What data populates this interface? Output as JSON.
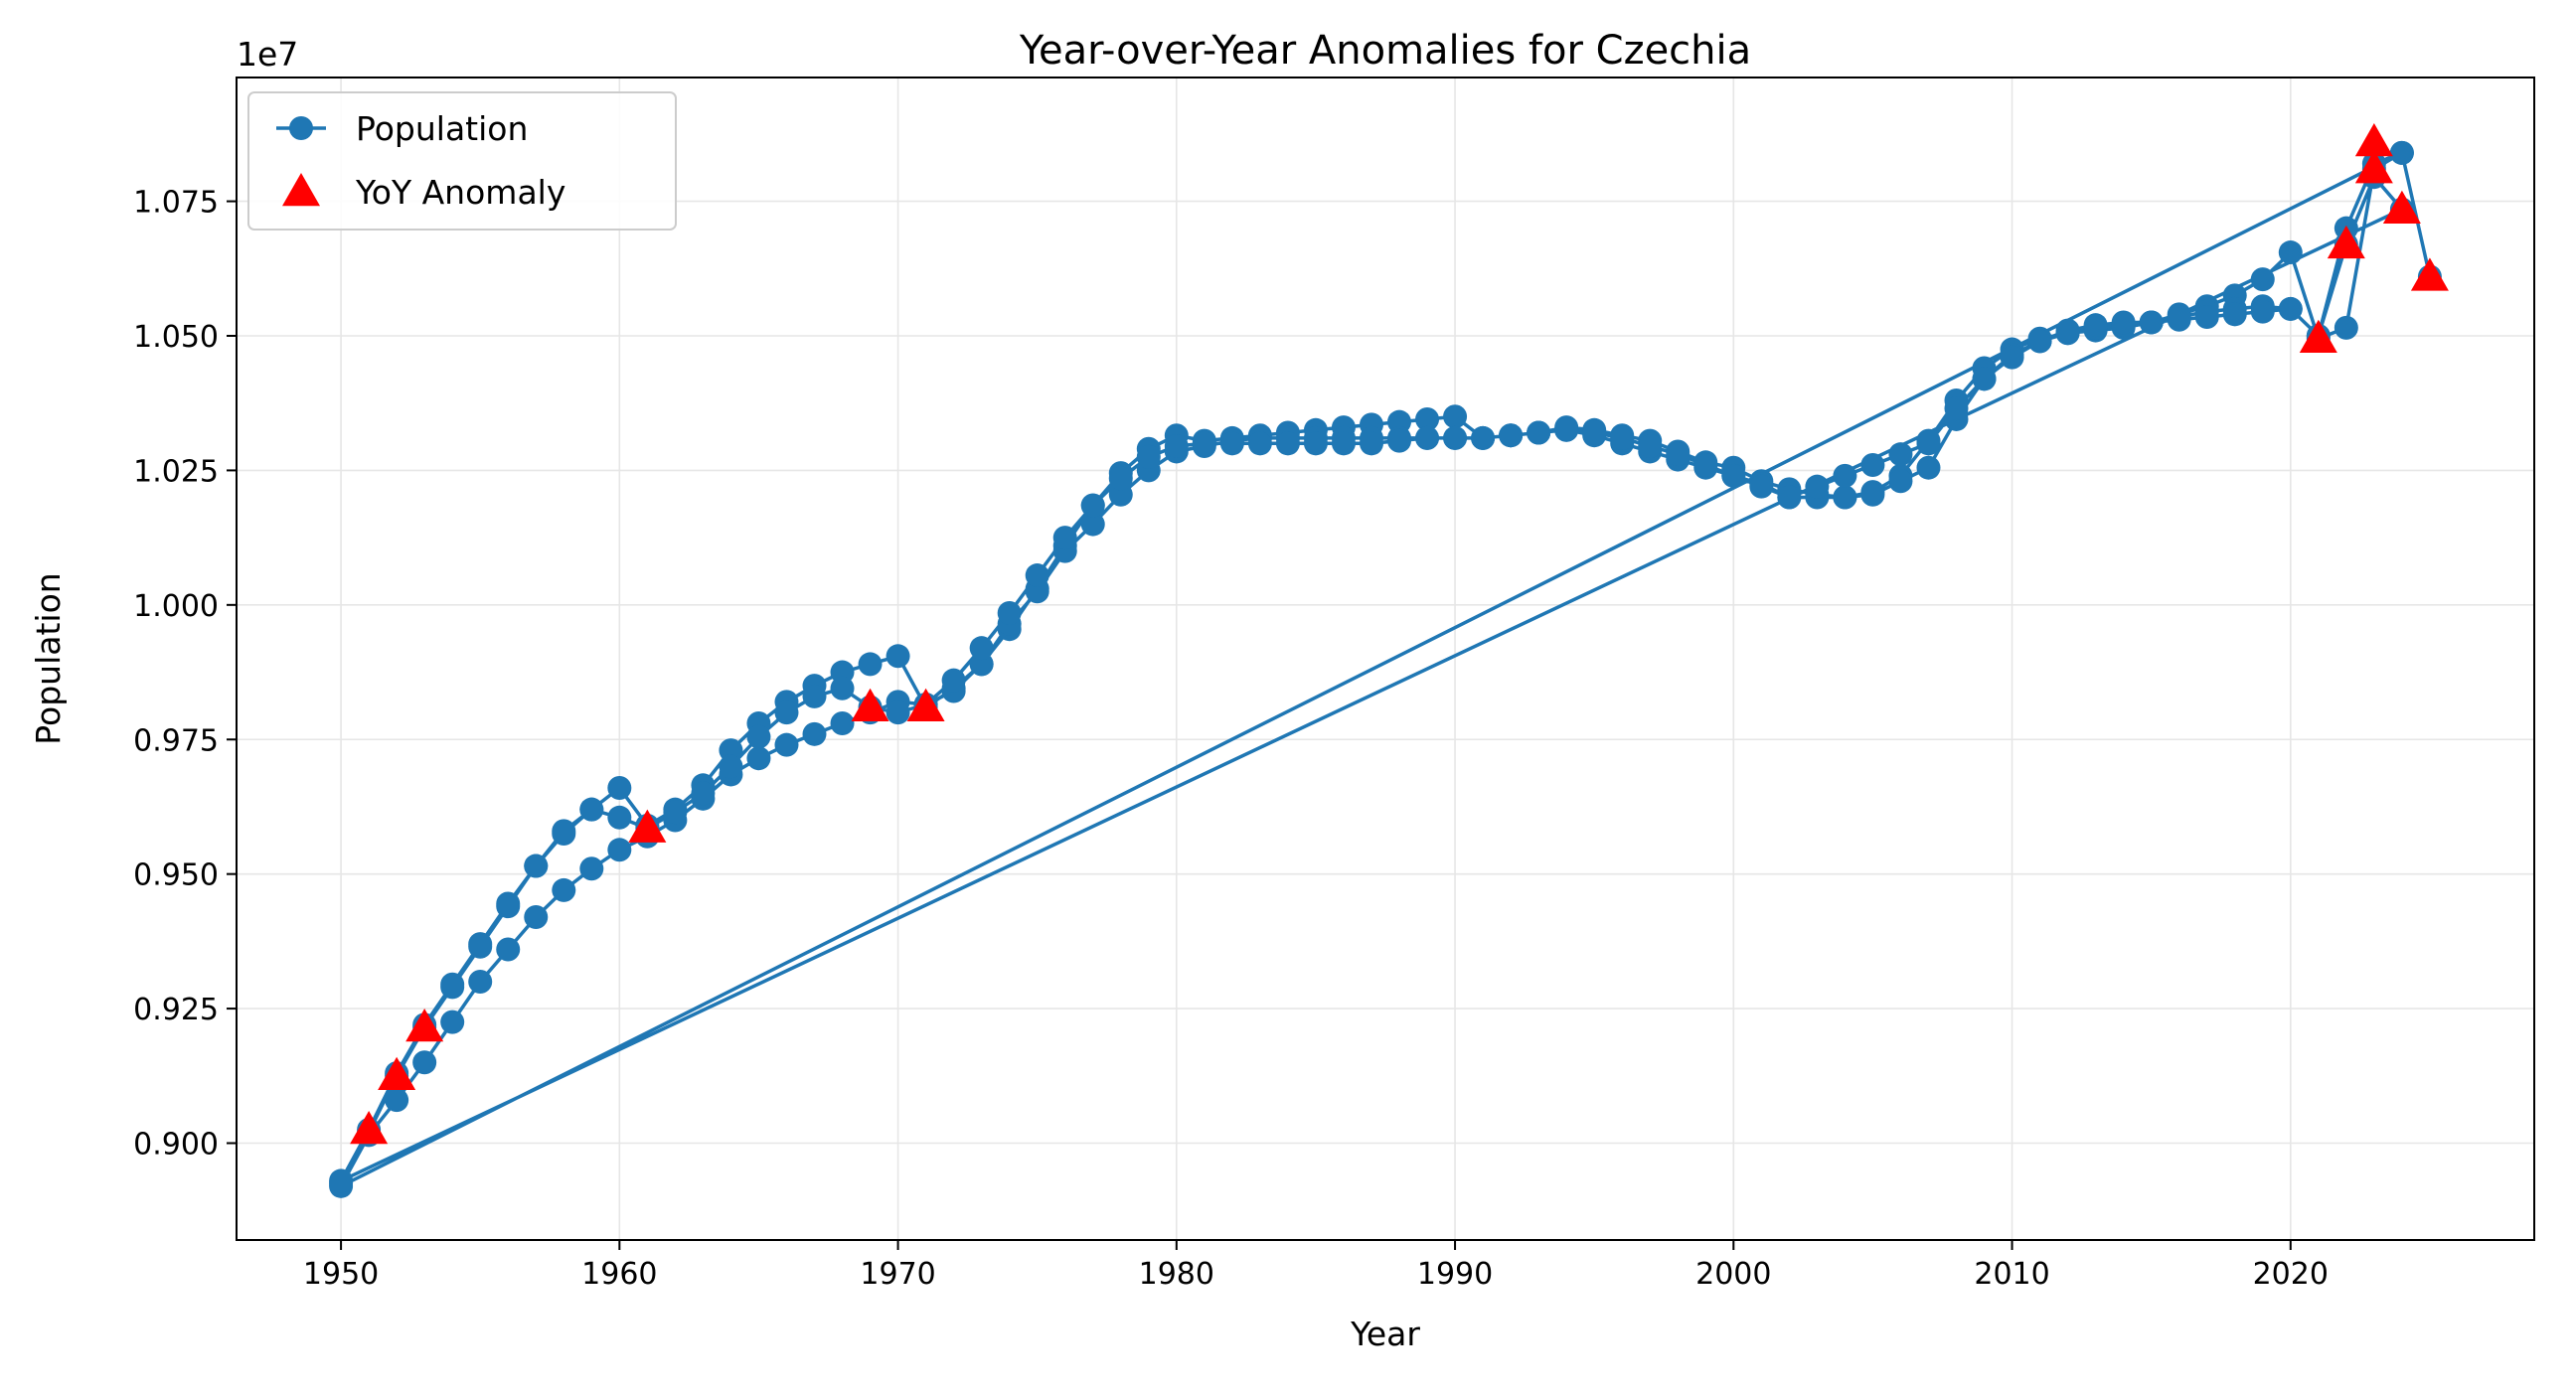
{
  "chart_data": {
    "type": "line",
    "title": "Year-over-Year Anomalies for Czechia",
    "xlabel": "Year",
    "ylabel": "Population",
    "y_offset_text": "1e7",
    "xlim": [
      1946.25,
      2028.75
    ],
    "ylim": [
      8820000.0,
      10980000.0
    ],
    "x_ticks": [
      1950,
      1960,
      1970,
      1980,
      1990,
      2000,
      2010,
      2020
    ],
    "x_tick_labels": [
      "1950",
      "1960",
      "1970",
      "1980",
      "1990",
      "2000",
      "2010",
      "2020"
    ],
    "y_ticks": [
      9000000,
      9250000,
      9500000,
      9750000,
      10000000,
      10250000,
      10500000,
      10750000
    ],
    "y_tick_labels": [
      "0.900",
      "0.925",
      "0.950",
      "0.975",
      "1.000",
      "1.025",
      "1.050",
      "1.075"
    ],
    "grid": true,
    "legend_position": "top-left",
    "colors": {
      "series": "#1f77b4",
      "anomaly": "#ff0000"
    },
    "series": [
      {
        "name": "Population",
        "x": [
          1950,
          1951,
          1952,
          1953,
          1954,
          1955,
          1956,
          1957,
          1958,
          1959,
          1960,
          1961,
          1962,
          1963,
          1964,
          1965,
          1966,
          1967,
          1968,
          1969,
          1970,
          1971,
          1972,
          1973,
          1974,
          1975,
          1976,
          1977,
          1978,
          1979,
          1980,
          1981,
          1982,
          1983,
          1984,
          1985,
          1986,
          1987,
          1988,
          1989,
          1990,
          1991,
          1992,
          1993,
          1994,
          1995,
          1996,
          1997,
          1998,
          1999,
          2000,
          2001,
          2002,
          2003,
          2004,
          2005,
          2006,
          2007,
          2008,
          2009,
          2010,
          2011,
          2012,
          2013,
          2014,
          2015,
          2016,
          2017,
          2018,
          2019,
          2020,
          2021,
          2022,
          2023,
          2024,
          1950,
          1951,
          1952,
          1953,
          1954,
          1955,
          1956,
          1957,
          1958,
          1959,
          1960,
          1961,
          1962,
          1963,
          1964,
          1965,
          1966,
          1967,
          1968,
          1969,
          1970,
          1971,
          1972,
          1973,
          1974,
          1975,
          1976,
          1977,
          1978,
          1979,
          1980,
          1981,
          1982,
          1983,
          1984,
          1985,
          1986,
          1987,
          1988,
          1989,
          1990,
          1991,
          1992,
          1993,
          1994,
          1995,
          1996,
          1997,
          1998,
          1999,
          2000,
          2001,
          2002,
          2003,
          2004,
          2005,
          2006,
          2007,
          2008,
          2009,
          2010,
          2011,
          2012,
          2013,
          2014,
          2015,
          2016,
          2017,
          2018,
          2019,
          2020,
          2021,
          2022,
          2023,
          2024,
          1950,
          1951,
          1952,
          1953,
          1954,
          1955,
          1956,
          1957,
          1958,
          1959,
          1960,
          1961,
          1962,
          1963,
          1964,
          1965,
          1966,
          1967,
          1968,
          1969,
          1970,
          1971,
          1972,
          1973,
          1974,
          1975,
          1976,
          1977,
          1978,
          1979,
          1980,
          1981,
          1982,
          1983,
          1984,
          1985,
          1986,
          1987,
          1988,
          1989,
          1990,
          1991,
          1992,
          1993,
          1994,
          1995,
          1996,
          1997,
          1998,
          1999,
          2000,
          2001,
          2002,
          2003,
          2004,
          2005,
          2006,
          2007,
          2008,
          2009,
          2010,
          2011,
          2012,
          2013,
          2014,
          2015,
          2016,
          2017,
          2018,
          2019,
          2020,
          2021,
          2022,
          2023,
          2024,
          2025
        ],
        "y": [
          8925000,
          9020000,
          9125000,
          9215000,
          9290000,
          9365000,
          9440000,
          9515000,
          9575000,
          9620000,
          9660000,
          9590000,
          9620000,
          9665000,
          9730000,
          9780000,
          9820000,
          9850000,
          9875000,
          9890000,
          9905000,
          9810000,
          9845000,
          9890000,
          9955000,
          10030000,
          10110000,
          10185000,
          10245000,
          10290000,
          10315000,
          10305000,
          10310000,
          10315000,
          10320000,
          10325000,
          10330000,
          10335000,
          10340000,
          10345000,
          10350000,
          10310000,
          10315000,
          10320000,
          10330000,
          10325000,
          10315000,
          10305000,
          10285000,
          10265000,
          10255000,
          10230000,
          10215000,
          10205000,
          10200000,
          10210000,
          10240000,
          10305000,
          10380000,
          10440000,
          10475000,
          10495000,
          10505000,
          10510000,
          10515000,
          10525000,
          10540000,
          10555000,
          10575000,
          10605000,
          10655000,
          10495000,
          10515000,
          10810000,
          10840000,
          8920000,
          9015000,
          9080000,
          9150000,
          9225000,
          9300000,
          9360000,
          9420000,
          9470000,
          9510000,
          9545000,
          9570000,
          9600000,
          9640000,
          9685000,
          9715000,
          9740000,
          9760000,
          9780000,
          9800000,
          9820000,
          9815000,
          9840000,
          9890000,
          9965000,
          10025000,
          10100000,
          10150000,
          10205000,
          10250000,
          10285000,
          10295000,
          10305000,
          10310000,
          10310000,
          10310000,
          10310000,
          10310000,
          10310000,
          10310000,
          10310000,
          10310000,
          10315000,
          10320000,
          10325000,
          10315000,
          10300000,
          10285000,
          10270000,
          10255000,
          10240000,
          10225000,
          10200000,
          10200000,
          10200000,
          10205000,
          10230000,
          10255000,
          10345000,
          10420000,
          10465000,
          10490000,
          10505000,
          10515000,
          10520000,
          10525000,
          10535000,
          10545000,
          10550000,
          10555000,
          10550000,
          10500000,
          10670000,
          10795000,
          10735000,
          8930000,
          9025000,
          9130000,
          9220000,
          9295000,
          9370000,
          9445000,
          9515000,
          9580000,
          9620000,
          9605000,
          9585000,
          9615000,
          9650000,
          9700000,
          9755000,
          9800000,
          9830000,
          9845000,
          9810000,
          9800000,
          9815000,
          9860000,
          9920000,
          9985000,
          10055000,
          10125000,
          10185000,
          10235000,
          10275000,
          10295000,
          10300000,
          10300000,
          10300000,
          10300000,
          10300000,
          10300000,
          10300000,
          10305000,
          10310000,
          10310000,
          10310000,
          10315000,
          10320000,
          10325000,
          10320000,
          10310000,
          10295000,
          10280000,
          10260000,
          10240000,
          10220000,
          10200000,
          10220000,
          10240000,
          10260000,
          10280000,
          10300000,
          10365000,
          10420000,
          10460000,
          10490000,
          10510000,
          10520000,
          10525000,
          10525000,
          10530000,
          10535000,
          10540000,
          10545000,
          10550000,
          10500000,
          10700000,
          10820000,
          10840000,
          10610000
        ]
      },
      {
        "name": "YoY Anomaly",
        "x": [
          1951,
          1952,
          1953,
          1961,
          1969,
          1971,
          2021,
          2022,
          2023,
          2023,
          2024,
          2025
        ],
        "y": [
          9025000,
          9125000,
          9215000,
          9585000,
          9810000,
          9810000,
          10495000,
          10670000,
          10860000,
          10810000,
          10735000,
          10610000
        ]
      }
    ]
  }
}
